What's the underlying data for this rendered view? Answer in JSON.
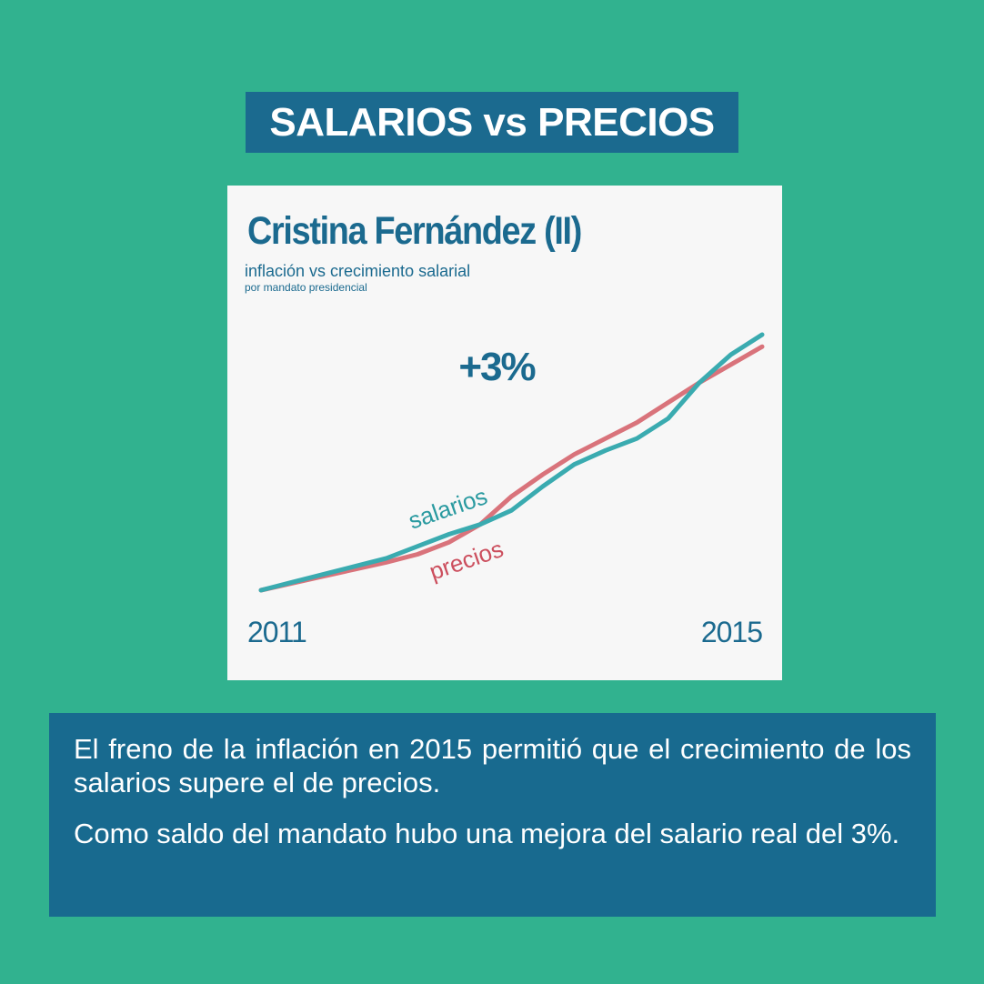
{
  "header": {
    "title": "SALARIOS vs PRECIOS"
  },
  "card": {
    "title": "Cristina Fernández (II)",
    "subtitle": "inflación vs crecimiento salarial",
    "note": "por mandato presidencial"
  },
  "chart_data": {
    "type": "line",
    "title": "Cristina Fernández (II)",
    "subtitle": "inflación vs crecimiento salarial",
    "annotation": "+3%",
    "x_start_label": "2011",
    "x_end_label": "2015",
    "x_range": [
      2011,
      2015
    ],
    "grid": false,
    "legend": "inline labels",
    "x": [
      2011.0,
      2011.25,
      2011.5,
      2011.75,
      2012.0,
      2012.25,
      2012.5,
      2012.75,
      2013.0,
      2013.25,
      2013.5,
      2013.75,
      2014.0,
      2014.25,
      2014.5,
      2014.75,
      2015.0
    ],
    "series": [
      {
        "name": "salarios",
        "color": "#3aabb0",
        "values": [
          100,
          104,
          108,
          112,
          116,
          122,
          128,
          133,
          140,
          152,
          163,
          170,
          176,
          186,
          204,
          218,
          228
        ]
      },
      {
        "name": "precios",
        "color": "#d9737b",
        "values": [
          100,
          103.5,
          107,
          110.5,
          114,
          118,
          124,
          133,
          147,
          158,
          168,
          176,
          184,
          194,
          204,
          213,
          222
        ]
      }
    ]
  },
  "caption": {
    "paragraph1": "El freno de la inflación en 2015 permitió que el crecimiento de los salarios supere el de precios.",
    "paragraph2": "Como saldo del mandato hubo una mejora del salario real del 3%."
  }
}
